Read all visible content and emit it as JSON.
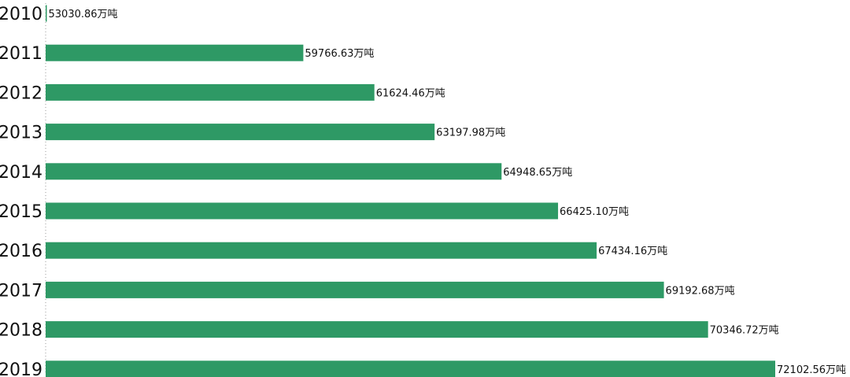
{
  "chart_data": {
    "type": "bar",
    "orientation": "horizontal",
    "categories": [
      "2010",
      "2011",
      "2012",
      "2013",
      "2014",
      "2015",
      "2016",
      "2017",
      "2018",
      "2019"
    ],
    "values": [
      53030.86,
      59766.63,
      61624.46,
      63197.98,
      64948.65,
      66425.1,
      67434.16,
      69192.68,
      70346.72,
      72102.56
    ],
    "value_labels": [
      "53030.86万吨",
      "59766.63万吨",
      "61624.46万吨",
      "63197.98万吨",
      "64948.65万吨",
      "66425.10万吨",
      "67434.16万吨",
      "69192.68万吨",
      "70346.72万吨",
      "72102.56万吨"
    ],
    "title": "",
    "xlabel": "",
    "ylabel": "",
    "xlim": [
      53030.86,
      72102.56
    ],
    "grid": false,
    "legend": "none",
    "bar_color": "#2e9965"
  }
}
